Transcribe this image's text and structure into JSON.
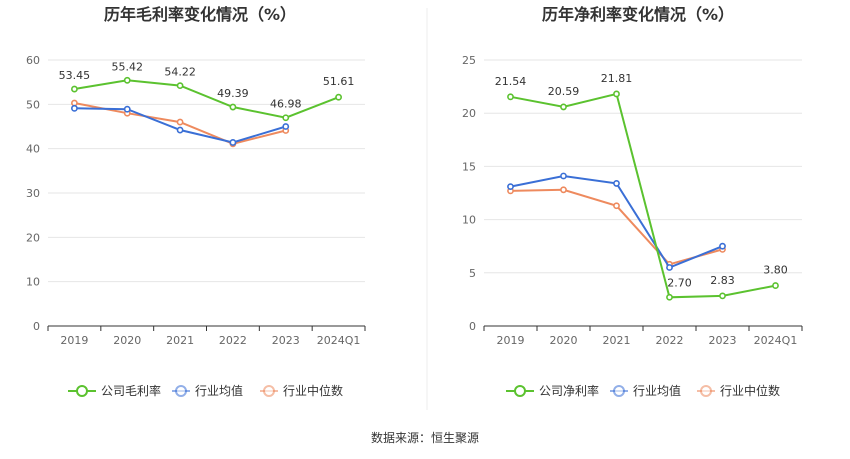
{
  "source_text": "数据来源：恒生聚源",
  "colors": {
    "company": "#5bc22f",
    "industry_avg": "#3a6fd6",
    "industry_median": "#ee8a5e",
    "grid": "#e6e6e6",
    "axis": "#333333"
  },
  "chart_data": [
    {
      "type": "line",
      "title": "历年毛利率变化情况（%）",
      "categories": [
        "2019",
        "2020",
        "2021",
        "2022",
        "2023",
        "2024Q1"
      ],
      "ylim": [
        0,
        60
      ],
      "yticks": [
        "0",
        "10",
        "20",
        "30",
        "40",
        "50",
        "60"
      ],
      "legend_position": "bottom",
      "series": [
        {
          "name": "公司毛利率",
          "color": "#5bc22f",
          "values": [
            53.45,
            55.42,
            54.22,
            49.39,
            46.98,
            51.61
          ],
          "labels": [
            "53.45",
            "55.42",
            "54.22",
            "49.39",
            "46.98",
            "51.61"
          ]
        },
        {
          "name": "行业均值",
          "color": "#3a6fd6",
          "values": [
            49.1,
            48.9,
            44.2,
            41.4,
            45.0,
            null
          ]
        },
        {
          "name": "行业中位数",
          "color": "#ee8a5e",
          "values": [
            50.3,
            48.0,
            46.0,
            41.1,
            44.1,
            null
          ]
        }
      ]
    },
    {
      "type": "line",
      "title": "历年净利率变化情况（%）",
      "categories": [
        "2019",
        "2020",
        "2021",
        "2022",
        "2023",
        "2024Q1"
      ],
      "ylim": [
        0,
        25
      ],
      "yticks": [
        "0",
        "5",
        "10",
        "15",
        "20",
        "25"
      ],
      "legend_position": "bottom",
      "series": [
        {
          "name": "公司净利率",
          "color": "#5bc22f",
          "values": [
            21.54,
            20.59,
            21.81,
            2.7,
            2.83,
            3.8
          ],
          "labels": [
            "21.54",
            "20.59",
            "21.81",
            "2.70",
            "2.83",
            "3.80"
          ]
        },
        {
          "name": "行业均值",
          "color": "#3a6fd6",
          "values": [
            13.1,
            14.1,
            13.4,
            5.5,
            7.5,
            null
          ]
        },
        {
          "name": "行业中位数",
          "color": "#ee8a5e",
          "values": [
            12.7,
            12.8,
            11.3,
            5.8,
            7.2,
            null
          ]
        }
      ]
    }
  ]
}
